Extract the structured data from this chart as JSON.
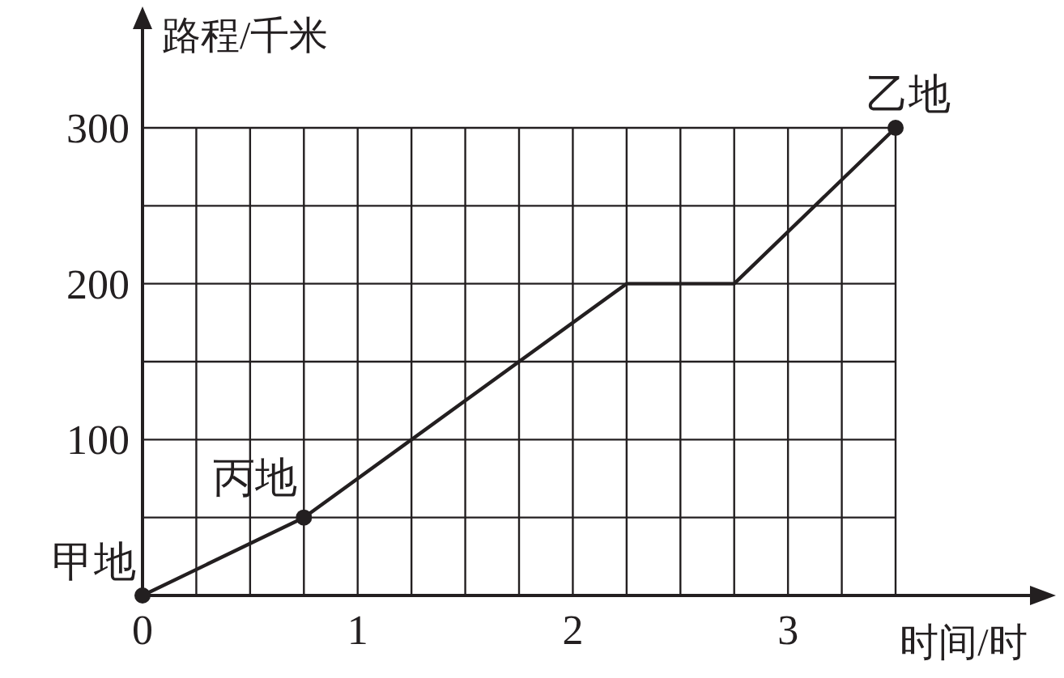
{
  "chart_data": {
    "type": "line",
    "xlabel": "时间/时",
    "ylabel": "路程/千米",
    "xlim": [
      0,
      3.5
    ],
    "ylim": [
      0,
      300
    ],
    "xticks": [
      0,
      {
        "value": 0.25,
        "label": null
      },
      {
        "value": 0.5,
        "label": null
      },
      {
        "value": 0.75,
        "label": null
      },
      1,
      {
        "value": 1.25,
        "label": null
      },
      {
        "value": 1.5,
        "label": null
      },
      {
        "value": 1.75,
        "label": null
      },
      2,
      {
        "value": 2.25,
        "label": null
      },
      {
        "value": 2.5,
        "label": null
      },
      {
        "value": 2.75,
        "label": null
      },
      3,
      {
        "value": 3.25,
        "label": null
      },
      {
        "value": 3.5,
        "label": null
      }
    ],
    "yticks": [
      {
        "value": 0,
        "label": null
      },
      {
        "value": 50,
        "label": null
      },
      100,
      {
        "value": 150,
        "label": null
      },
      200,
      {
        "value": 250,
        "label": null
      },
      300
    ],
    "grid": true,
    "series": [
      {
        "color": "#231f20",
        "x": [
          0,
          0.75,
          2.25,
          2.75,
          3.5
        ],
        "values": [
          0,
          50,
          200,
          200,
          300
        ],
        "marker": "none"
      },
      {
        "type": "scatter",
        "color": "#231f20",
        "x": [
          0,
          0.75,
          3.5
        ],
        "values": [
          0,
          50,
          300
        ],
        "marker": "circle"
      }
    ],
    "annotations": [
      {
        "text": "甲地",
        "x": 0,
        "y": 0
      },
      {
        "text": "丙地",
        "x": 0.75,
        "y": 50
      },
      {
        "text": "乙地",
        "x": 3.5,
        "y": 300
      }
    ]
  }
}
